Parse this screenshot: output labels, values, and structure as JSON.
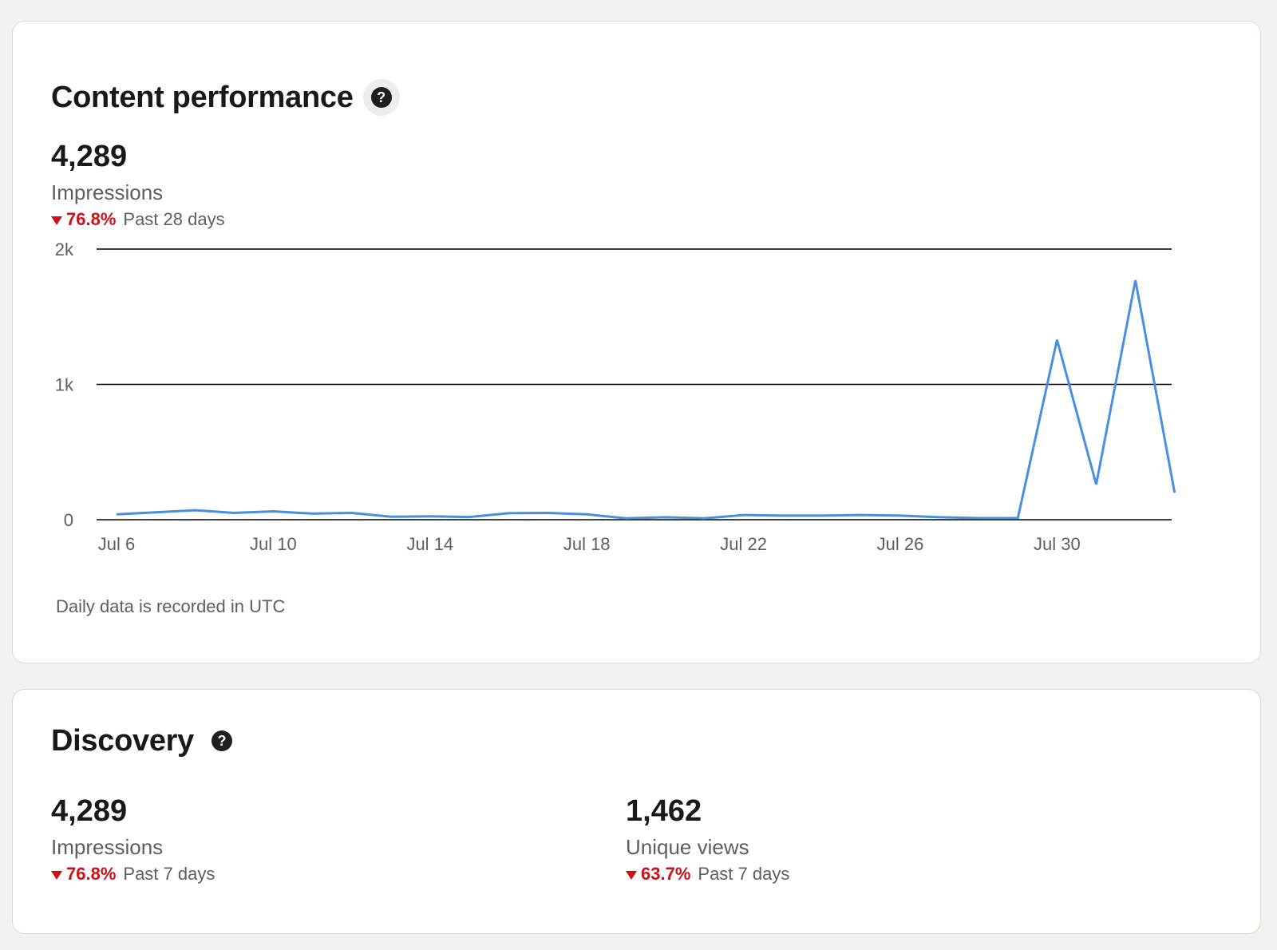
{
  "content_performance": {
    "title": "Content performance",
    "help_icon": "question-circle-icon",
    "metric": {
      "value": "4,289",
      "label": "Impressions",
      "change": "76.8%",
      "change_direction": "down",
      "period": "Past 28 days"
    },
    "footnote": "Daily data is recorded in UTC"
  },
  "discovery": {
    "title": "Discovery",
    "help_icon": "question-circle-icon",
    "metrics": [
      {
        "value": "4,289",
        "label": "Impressions",
        "change": "76.8%",
        "change_direction": "down",
        "period": "Past 7 days"
      },
      {
        "value": "1,462",
        "label": "Unique views",
        "change": "63.7%",
        "change_direction": "down",
        "period": "Past 7 days"
      }
    ]
  },
  "colors": {
    "line": "#4a8ee0",
    "negative": "#cc1016",
    "gridline": "#000000"
  },
  "chart_data": {
    "type": "line",
    "title": "",
    "xlabel": "",
    "ylabel": "",
    "x": [
      "Jul 6",
      "Jul 7",
      "Jul 8",
      "Jul 9",
      "Jul 10",
      "Jul 11",
      "Jul 12",
      "Jul 13",
      "Jul 14",
      "Jul 15",
      "Jul 16",
      "Jul 17",
      "Jul 18",
      "Jul 19",
      "Jul 20",
      "Jul 21",
      "Jul 22",
      "Jul 23",
      "Jul 24",
      "Jul 25",
      "Jul 26",
      "Jul 27",
      "Jul 28",
      "Jul 29",
      "Jul 30",
      "Jul 31",
      "Aug 1",
      "Aug 2"
    ],
    "x_tick_labels": [
      "Jul 6",
      "Jul 10",
      "Jul 14",
      "Jul 18",
      "Jul 22",
      "Jul 26",
      "Jul 30"
    ],
    "y_tick_labels": [
      "0",
      "1k",
      "2k"
    ],
    "y_ticks": [
      0,
      1000,
      2000
    ],
    "ylim": [
      0,
      2000
    ],
    "grid": true,
    "legend": "none",
    "series": [
      {
        "values": [
          40,
          55,
          70,
          50,
          62,
          45,
          50,
          22,
          25,
          20,
          48,
          50,
          40,
          10,
          18,
          10,
          35,
          30,
          30,
          35,
          30,
          18,
          12,
          12,
          1330,
          260,
          1770,
          200
        ]
      }
    ]
  }
}
